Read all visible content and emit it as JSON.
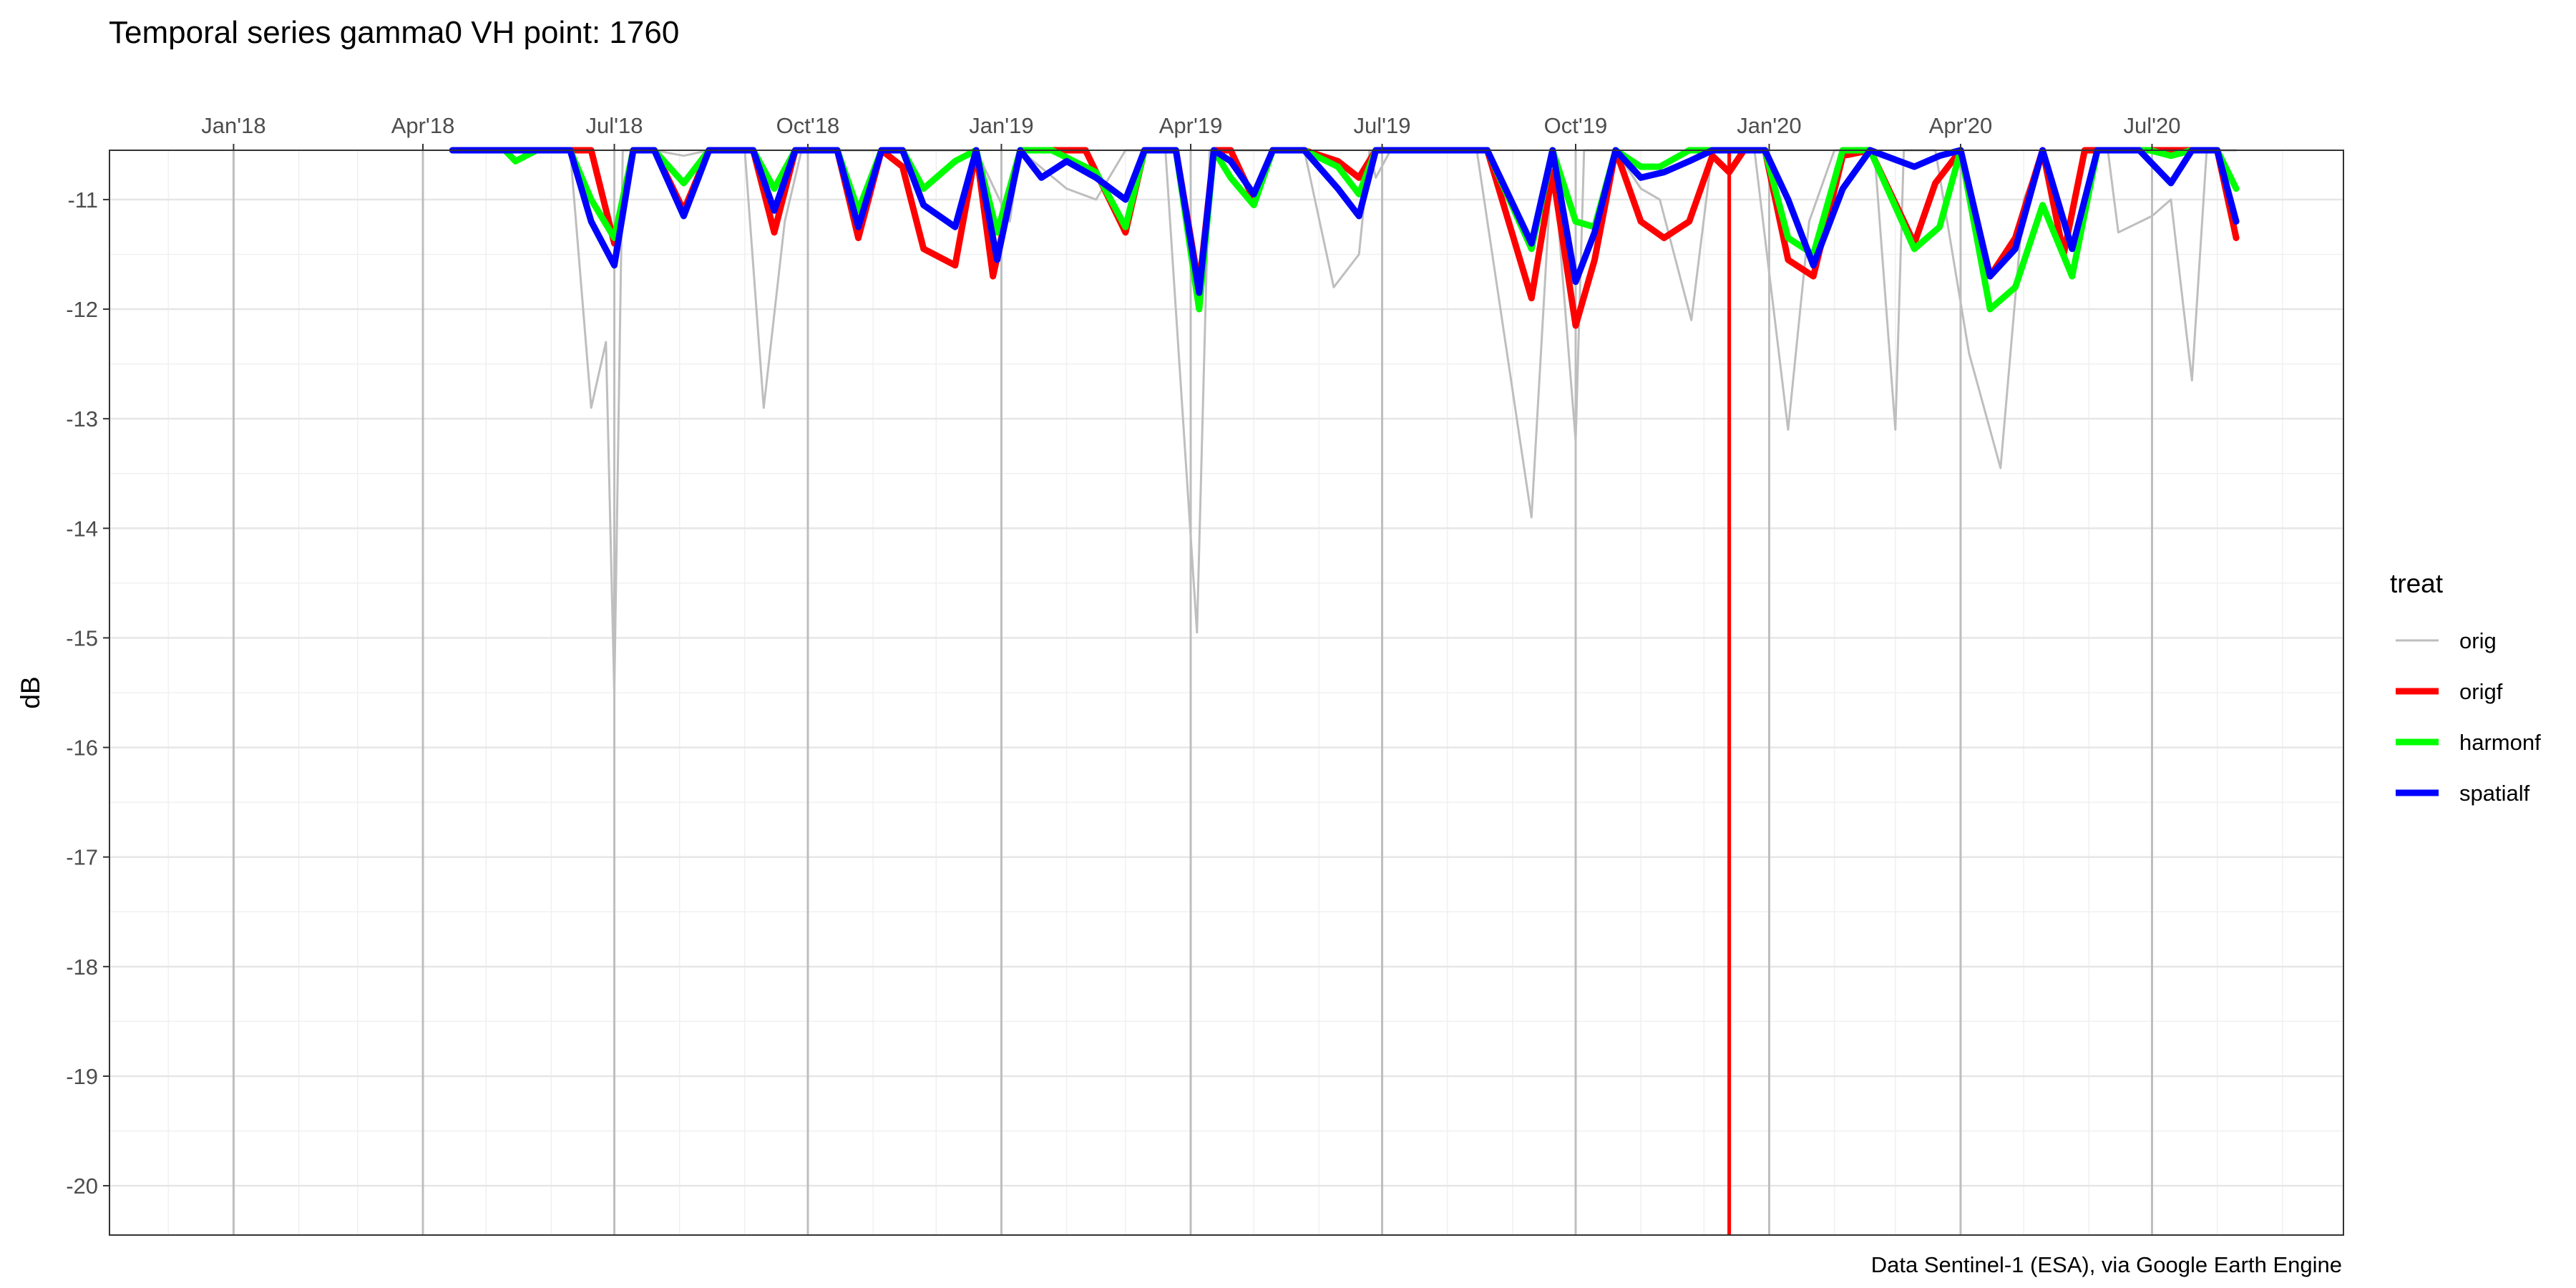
{
  "chart_data": {
    "type": "line",
    "title": "Temporal series gamma0 VH point: 1760",
    "xlabel": "",
    "ylabel": "dB",
    "caption": "Data Sentinel-1 (ESA), via Google Earth Engine",
    "x_range": [
      "2017-11-03",
      "2020-09-30"
    ],
    "ylim": [
      -20.45,
      -10.55
    ],
    "y_ticks": [
      -20,
      -19,
      -18,
      -17,
      -16,
      -15,
      -14,
      -13,
      -12,
      -11
    ],
    "x_ticks": [
      {
        "date": "2018-01-01",
        "label": "Jan'18"
      },
      {
        "date": "2018-04-01",
        "label": "Apr'18"
      },
      {
        "date": "2018-07-01",
        "label": "Jul'18"
      },
      {
        "date": "2018-10-01",
        "label": "Oct'18"
      },
      {
        "date": "2019-01-01",
        "label": "Jan'19"
      },
      {
        "date": "2019-04-01",
        "label": "Apr'19"
      },
      {
        "date": "2019-07-01",
        "label": "Jul'19"
      },
      {
        "date": "2019-10-01",
        "label": "Oct'19"
      },
      {
        "date": "2020-01-01",
        "label": "Jan'20"
      },
      {
        "date": "2020-04-01",
        "label": "Apr'20"
      },
      {
        "date": "2020-07-01",
        "label": "Jul'20"
      }
    ],
    "grid": true,
    "reference_line": {
      "date": "2019-12-13",
      "color": "#ff0000"
    },
    "legend": {
      "title": "treat",
      "position": "right",
      "entries": [
        {
          "name": "orig",
          "color": "#bebebe"
        },
        {
          "name": "origf",
          "color": "#ff0000"
        },
        {
          "name": "harmonf",
          "color": "#00ff00"
        },
        {
          "name": "spatialf",
          "color": "#0000ff"
        }
      ]
    },
    "series": [
      {
        "name": "orig",
        "color": "#bebebe",
        "points": [
          [
            "2018-05-01",
            -10.5
          ],
          [
            "2018-05-20",
            -10.5
          ],
          [
            "2018-06-10",
            -10.5
          ],
          [
            "2018-06-20",
            -12.9
          ],
          [
            "2018-06-27",
            -12.3
          ],
          [
            "2018-07-01",
            -15.5
          ],
          [
            "2018-07-05",
            -10.5
          ],
          [
            "2018-07-20",
            -10.5
          ],
          [
            "2018-08-03",
            -10.6
          ],
          [
            "2018-08-15",
            -10.5
          ],
          [
            "2018-09-01",
            -10.5
          ],
          [
            "2018-09-10",
            -12.9
          ],
          [
            "2018-09-20",
            -11.2
          ],
          [
            "2018-09-28",
            -10.5
          ],
          [
            "2018-10-20",
            -10.5
          ],
          [
            "2018-11-15",
            -10.5
          ],
          [
            "2018-12-20",
            -10.5
          ],
          [
            "2019-01-05",
            -11.2
          ],
          [
            "2019-01-10",
            -10.5
          ],
          [
            "2019-02-01",
            -10.9
          ],
          [
            "2019-02-15",
            -11.0
          ],
          [
            "2019-03-01",
            -10.5
          ],
          [
            "2019-03-20",
            -10.5
          ],
          [
            "2019-04-04",
            -14.95
          ],
          [
            "2019-04-10",
            -10.5
          ],
          [
            "2019-05-01",
            -10.5
          ],
          [
            "2019-05-25",
            -10.5
          ],
          [
            "2019-06-08",
            -11.8
          ],
          [
            "2019-06-20",
            -11.5
          ],
          [
            "2019-06-25",
            -10.5
          ],
          [
            "2019-06-28",
            -10.8
          ],
          [
            "2019-07-05",
            -10.5
          ],
          [
            "2019-08-15",
            -10.5
          ],
          [
            "2019-09-10",
            -13.9
          ],
          [
            "2019-09-20",
            -10.5
          ],
          [
            "2019-10-01",
            -13.2
          ],
          [
            "2019-10-05",
            -10.5
          ],
          [
            "2019-10-20",
            -10.5
          ],
          [
            "2019-11-01",
            -10.9
          ],
          [
            "2019-11-10",
            -11.0
          ],
          [
            "2019-11-25",
            -12.1
          ],
          [
            "2019-12-05",
            -10.5
          ],
          [
            "2019-12-25",
            -10.5
          ],
          [
            "2020-01-10",
            -13.1
          ],
          [
            "2020-01-20",
            -11.2
          ],
          [
            "2020-02-01",
            -10.5
          ],
          [
            "2020-02-20",
            -10.5
          ],
          [
            "2020-03-01",
            -13.1
          ],
          [
            "2020-03-05",
            -10.5
          ],
          [
            "2020-03-20",
            -10.5
          ],
          [
            "2020-04-05",
            -12.4
          ],
          [
            "2020-04-20",
            -13.45
          ],
          [
            "2020-05-01",
            -11.0
          ],
          [
            "2020-05-10",
            -10.5
          ],
          [
            "2020-06-10",
            -10.5
          ],
          [
            "2020-06-15",
            -11.3
          ],
          [
            "2020-07-01",
            -11.15
          ],
          [
            "2020-07-10",
            -11.0
          ],
          [
            "2020-07-20",
            -12.65
          ],
          [
            "2020-07-27",
            -10.5
          ],
          [
            "2020-08-10",
            -10.5
          ]
        ]
      },
      {
        "name": "origf",
        "color": "#ff0000",
        "points": [
          [
            "2018-05-20",
            -10.5
          ],
          [
            "2018-06-10",
            -10.5
          ],
          [
            "2018-06-20",
            -10.55
          ],
          [
            "2018-07-01",
            -11.4
          ],
          [
            "2018-07-10",
            -10.5
          ],
          [
            "2018-07-20",
            -10.5
          ],
          [
            "2018-08-03",
            -11.1
          ],
          [
            "2018-08-15",
            -10.5
          ],
          [
            "2018-09-05",
            -10.5
          ],
          [
            "2018-09-15",
            -11.3
          ],
          [
            "2018-09-25",
            -10.5
          ],
          [
            "2018-10-15",
            -10.5
          ],
          [
            "2018-10-25",
            -11.35
          ],
          [
            "2018-11-05",
            -10.5
          ],
          [
            "2018-11-15",
            -10.7
          ],
          [
            "2018-11-25",
            -11.45
          ],
          [
            "2018-12-10",
            -11.6
          ],
          [
            "2018-12-20",
            -10.5
          ],
          [
            "2018-12-28",
            -11.7
          ],
          [
            "2019-01-10",
            -10.5
          ],
          [
            "2019-01-25",
            -10.55
          ],
          [
            "2019-02-10",
            -10.55
          ],
          [
            "2019-03-01",
            -11.3
          ],
          [
            "2019-03-10",
            -10.5
          ],
          [
            "2019-03-25",
            -10.5
          ],
          [
            "2019-04-05",
            -11.8
          ],
          [
            "2019-04-12",
            -10.5
          ],
          [
            "2019-04-20",
            -10.5
          ],
          [
            "2019-05-01",
            -11.0
          ],
          [
            "2019-05-10",
            -10.5
          ],
          [
            "2019-05-25",
            -10.5
          ],
          [
            "2019-06-10",
            -10.65
          ],
          [
            "2019-06-20",
            -10.8
          ],
          [
            "2019-06-28",
            -10.5
          ],
          [
            "2019-08-20",
            -10.5
          ],
          [
            "2019-09-10",
            -11.9
          ],
          [
            "2019-09-20",
            -10.75
          ],
          [
            "2019-10-01",
            -12.15
          ],
          [
            "2019-10-10",
            -11.55
          ],
          [
            "2019-10-20",
            -10.5
          ],
          [
            "2019-11-01",
            -11.2
          ],
          [
            "2019-11-12",
            -11.35
          ],
          [
            "2019-11-24",
            -11.2
          ],
          [
            "2019-12-05",
            -10.6
          ],
          [
            "2019-12-13",
            -10.75
          ],
          [
            "2019-12-20",
            -10.5
          ],
          [
            "2019-12-30",
            -10.5
          ],
          [
            "2020-01-10",
            -11.55
          ],
          [
            "2020-01-22",
            -11.7
          ],
          [
            "2020-02-05",
            -10.6
          ],
          [
            "2020-02-18",
            -10.5
          ],
          [
            "2020-03-10",
            -11.4
          ],
          [
            "2020-03-20",
            -10.85
          ],
          [
            "2020-04-01",
            -10.5
          ],
          [
            "2020-04-15",
            -11.7
          ],
          [
            "2020-04-27",
            -11.35
          ],
          [
            "2020-05-10",
            -10.5
          ],
          [
            "2020-05-20",
            -11.5
          ],
          [
            "2020-05-30",
            -10.5
          ],
          [
            "2020-06-30",
            -10.5
          ],
          [
            "2020-07-10",
            -10.5
          ],
          [
            "2020-07-20",
            -10.5
          ],
          [
            "2020-08-01",
            -10.5
          ],
          [
            "2020-08-10",
            -11.35
          ]
        ]
      },
      {
        "name": "harmonf",
        "color": "#00ff00",
        "points": [
          [
            "2018-04-20",
            -10.5
          ],
          [
            "2018-05-10",
            -10.5
          ],
          [
            "2018-05-15",
            -10.65
          ],
          [
            "2018-05-25",
            -10.5
          ],
          [
            "2018-06-10",
            -10.5
          ],
          [
            "2018-06-20",
            -11.0
          ],
          [
            "2018-07-01",
            -11.35
          ],
          [
            "2018-07-10",
            -10.5
          ],
          [
            "2018-07-20",
            -10.5
          ],
          [
            "2018-08-03",
            -10.85
          ],
          [
            "2018-08-15",
            -10.5
          ],
          [
            "2018-09-05",
            -10.5
          ],
          [
            "2018-09-15",
            -10.9
          ],
          [
            "2018-09-25",
            -10.5
          ],
          [
            "2018-10-15",
            -10.5
          ],
          [
            "2018-10-25",
            -11.1
          ],
          [
            "2018-11-05",
            -10.5
          ],
          [
            "2018-11-15",
            -10.5
          ],
          [
            "2018-11-25",
            -10.9
          ],
          [
            "2018-12-10",
            -10.65
          ],
          [
            "2018-12-20",
            -10.5
          ],
          [
            "2018-12-30",
            -11.3
          ],
          [
            "2019-01-10",
            -10.5
          ],
          [
            "2019-01-25",
            -10.5
          ],
          [
            "2019-02-15",
            -10.75
          ],
          [
            "2019-03-01",
            -11.25
          ],
          [
            "2019-03-10",
            -10.5
          ],
          [
            "2019-03-25",
            -10.5
          ],
          [
            "2019-04-05",
            -12.0
          ],
          [
            "2019-04-12",
            -10.5
          ],
          [
            "2019-04-20",
            -10.8
          ],
          [
            "2019-05-01",
            -11.05
          ],
          [
            "2019-05-10",
            -10.5
          ],
          [
            "2019-05-25",
            -10.5
          ],
          [
            "2019-06-10",
            -10.7
          ],
          [
            "2019-06-20",
            -10.95
          ],
          [
            "2019-06-28",
            -10.5
          ],
          [
            "2019-08-20",
            -10.5
          ],
          [
            "2019-09-10",
            -11.45
          ],
          [
            "2019-09-20",
            -10.5
          ],
          [
            "2019-10-01",
            -11.2
          ],
          [
            "2019-10-10",
            -11.25
          ],
          [
            "2019-10-20",
            -10.5
          ],
          [
            "2019-11-01",
            -10.7
          ],
          [
            "2019-11-10",
            -10.7
          ],
          [
            "2019-11-24",
            -10.5
          ],
          [
            "2019-12-05",
            -10.5
          ],
          [
            "2019-12-30",
            -10.5
          ],
          [
            "2020-01-10",
            -11.35
          ],
          [
            "2020-01-22",
            -11.5
          ],
          [
            "2020-02-05",
            -10.5
          ],
          [
            "2020-02-18",
            -10.5
          ],
          [
            "2020-03-10",
            -11.45
          ],
          [
            "2020-03-22",
            -11.25
          ],
          [
            "2020-04-01",
            -10.5
          ],
          [
            "2020-04-15",
            -12.0
          ],
          [
            "2020-04-27",
            -11.8
          ],
          [
            "2020-05-10",
            -11.05
          ],
          [
            "2020-05-24",
            -11.7
          ],
          [
            "2020-06-05",
            -10.5
          ],
          [
            "2020-06-30",
            -10.5
          ],
          [
            "2020-07-10",
            -10.6
          ],
          [
            "2020-07-20",
            -10.5
          ],
          [
            "2020-08-01",
            -10.5
          ],
          [
            "2020-08-10",
            -10.9
          ]
        ]
      },
      {
        "name": "spatialf",
        "color": "#0000ff",
        "points": [
          [
            "2018-04-15",
            -10.5
          ],
          [
            "2018-05-01",
            -10.55
          ],
          [
            "2018-05-10",
            -10.5
          ],
          [
            "2018-06-10",
            -10.5
          ],
          [
            "2018-06-20",
            -11.2
          ],
          [
            "2018-07-01",
            -11.6
          ],
          [
            "2018-07-10",
            -10.5
          ],
          [
            "2018-07-20",
            -10.5
          ],
          [
            "2018-08-03",
            -11.15
          ],
          [
            "2018-08-15",
            -10.5
          ],
          [
            "2018-09-05",
            -10.5
          ],
          [
            "2018-09-15",
            -11.1
          ],
          [
            "2018-09-25",
            -10.5
          ],
          [
            "2018-10-15",
            -10.5
          ],
          [
            "2018-10-25",
            -11.25
          ],
          [
            "2018-11-05",
            -10.5
          ],
          [
            "2018-11-15",
            -10.5
          ],
          [
            "2018-11-25",
            -11.05
          ],
          [
            "2018-12-10",
            -11.25
          ],
          [
            "2018-12-20",
            -10.5
          ],
          [
            "2018-12-30",
            -11.55
          ],
          [
            "2019-01-10",
            -10.5
          ],
          [
            "2019-01-20",
            -10.8
          ],
          [
            "2019-02-01",
            -10.65
          ],
          [
            "2019-02-15",
            -10.8
          ],
          [
            "2019-03-01",
            -11.0
          ],
          [
            "2019-03-10",
            -10.5
          ],
          [
            "2019-03-25",
            -10.5
          ],
          [
            "2019-04-05",
            -11.85
          ],
          [
            "2019-04-12",
            -10.5
          ],
          [
            "2019-04-20",
            -10.65
          ],
          [
            "2019-05-01",
            -10.95
          ],
          [
            "2019-05-10",
            -10.5
          ],
          [
            "2019-05-25",
            -10.55
          ],
          [
            "2019-06-10",
            -10.9
          ],
          [
            "2019-06-20",
            -11.15
          ],
          [
            "2019-06-28",
            -10.5
          ],
          [
            "2019-08-20",
            -10.5
          ],
          [
            "2019-09-10",
            -11.4
          ],
          [
            "2019-09-20",
            -10.5
          ],
          [
            "2019-10-01",
            -11.75
          ],
          [
            "2019-10-10",
            -11.3
          ],
          [
            "2019-10-20",
            -10.5
          ],
          [
            "2019-11-01",
            -10.8
          ],
          [
            "2019-11-12",
            -10.75
          ],
          [
            "2019-11-24",
            -10.65
          ],
          [
            "2019-12-05",
            -10.5
          ],
          [
            "2019-12-30",
            -10.5
          ],
          [
            "2020-01-10",
            -11.0
          ],
          [
            "2020-01-22",
            -11.6
          ],
          [
            "2020-02-05",
            -10.9
          ],
          [
            "2020-02-18",
            -10.5
          ],
          [
            "2020-03-10",
            -10.7
          ],
          [
            "2020-03-22",
            -10.6
          ],
          [
            "2020-04-01",
            -10.5
          ],
          [
            "2020-04-15",
            -11.7
          ],
          [
            "2020-04-27",
            -11.45
          ],
          [
            "2020-05-10",
            -10.5
          ],
          [
            "2020-05-24",
            -11.45
          ],
          [
            "2020-06-05",
            -10.5
          ],
          [
            "2020-06-25",
            -10.5
          ],
          [
            "2020-07-10",
            -10.85
          ],
          [
            "2020-07-20",
            -10.5
          ],
          [
            "2020-08-01",
            -10.5
          ],
          [
            "2020-08-10",
            -11.2
          ]
        ]
      }
    ]
  }
}
